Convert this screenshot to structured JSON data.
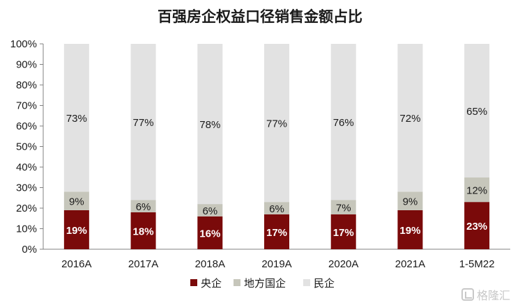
{
  "chart_data": {
    "type": "bar",
    "stacked": true,
    "title": "百强房企权益口径销售金额占比",
    "categories": [
      "2016A",
      "2017A",
      "2018A",
      "2019A",
      "2020A",
      "2021A",
      "1-5M22"
    ],
    "series": [
      {
        "name": "央企",
        "color": "#7a0a0a",
        "label_color": "#ffffff",
        "label_bold": true,
        "values": [
          19,
          18,
          16,
          17,
          17,
          19,
          23
        ]
      },
      {
        "name": "地方国企",
        "color": "#c6c6bb",
        "label_color": "#1a1a1a",
        "label_bold": false,
        "values": [
          9,
          6,
          6,
          6,
          7,
          9,
          12
        ]
      },
      {
        "name": "民企",
        "color": "#e2e2e2",
        "label_color": "#1a1a1a",
        "label_bold": false,
        "values": [
          73,
          77,
          78,
          77,
          76,
          72,
          65
        ]
      }
    ],
    "data_labels": [
      [
        "19%",
        "18%",
        "16%",
        "17%",
        "17%",
        "19%",
        "23%"
      ],
      [
        "9%",
        "6%",
        "6%",
        "6%",
        "7%",
        "9%",
        "12%"
      ],
      [
        "73%",
        "77%",
        "78%",
        "77%",
        "76%",
        "72%",
        "65%"
      ]
    ],
    "ylim": [
      0,
      100
    ],
    "yticks": [
      "0%",
      "10%",
      "20%",
      "30%",
      "40%",
      "50%",
      "60%",
      "70%",
      "80%",
      "90%",
      "100%"
    ],
    "grid": false,
    "legend_position": "bottom"
  },
  "watermark": {
    "text": "格隆汇",
    "icon": "glh-logo-icon"
  }
}
